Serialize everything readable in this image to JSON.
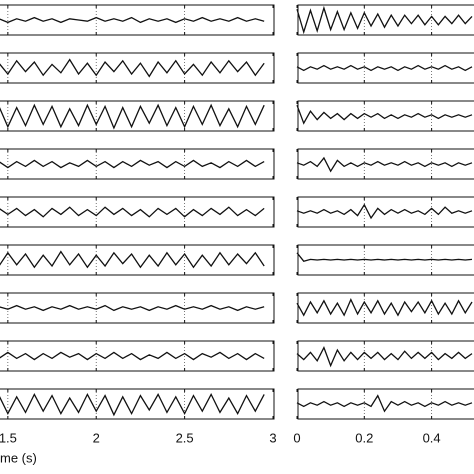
{
  "chart_data": [
    {
      "type": "line",
      "x_label": "me (s)",
      "xlim": [
        1.45,
        3
      ],
      "xticks": [
        1.5,
        2,
        2.5,
        3
      ],
      "ylim": [
        -1,
        1
      ],
      "grid": true,
      "color": "#111111",
      "x": [
        1.45,
        1.5,
        1.55,
        1.6,
        1.65,
        1.7,
        1.75,
        1.8,
        1.85,
        1.9,
        1.95,
        2,
        2.05,
        2.1,
        2.15,
        2.2,
        2.25,
        2.3,
        2.35,
        2.4,
        2.45,
        2.5,
        2.55,
        2.6,
        2.65,
        2.7,
        2.75,
        2.8,
        2.85,
        2.9,
        2.95
      ],
      "series": [
        {
          "values": [
            0.1,
            -0.2,
            0.1,
            -0.1,
            0.2,
            -0.1,
            0.1,
            -0.2,
            0.1,
            0,
            -0.1,
            0.2,
            -0.1,
            0.1,
            -0.1,
            0.2,
            -0.2,
            0.1,
            -0.1,
            0.1,
            -0.2,
            0.1,
            -0.1,
            0.2,
            -0.1,
            0.1,
            -0.1,
            0.2,
            -0.1,
            0.1,
            -0.1
          ]
        },
        {
          "values": [
            0.4,
            -0.5,
            0.6,
            -0.3,
            0.5,
            -0.6,
            0.3,
            -0.4,
            0.7,
            -0.5,
            0.4,
            -0.6,
            0.5,
            -0.3,
            0.6,
            -0.5,
            0.4,
            -0.7,
            0.5,
            -0.4,
            0.6,
            -0.5,
            0.3,
            -0.6,
            0.5,
            -0.4,
            0.6,
            -0.3,
            0.5,
            -0.6,
            0.4
          ]
        },
        {
          "values": [
            0.8,
            -0.9,
            0.7,
            -0.8,
            0.9,
            -0.7,
            0.8,
            -0.9,
            0.6,
            -0.8,
            0.9,
            -0.7,
            0.8,
            -1,
            0.7,
            -0.9,
            0.8,
            -0.6,
            0.9,
            -0.8,
            0.7,
            -0.9,
            0.8,
            -0.7,
            0.9,
            -0.8,
            0.6,
            -0.9,
            0.8,
            -0.7,
            0.9
          ]
        },
        {
          "values": [
            0.2,
            -0.3,
            0.2,
            -0.2,
            0.3,
            -0.2,
            0.2,
            -0.3,
            0.1,
            -0.2,
            0.3,
            -0.2,
            0.2,
            -0.3,
            0.2,
            -0.2,
            0.3,
            -0.1,
            0.2,
            -0.3,
            0.2,
            -0.2,
            0.3,
            -0.2,
            0.1,
            -0.3,
            0.2,
            -0.2,
            0.3,
            -0.2,
            0.2
          ]
        },
        {
          "values": [
            0.3,
            -0.2,
            0.3,
            -0.3,
            0.2,
            -0.4,
            0.3,
            -0.2,
            0.4,
            -0.3,
            0.2,
            -0.3,
            0.4,
            -0.2,
            0.3,
            -0.3,
            0.2,
            -0.4,
            0.3,
            -0.2,
            0.3,
            -0.4,
            0.2,
            -0.3,
            0.3,
            -0.2,
            0.4,
            -0.3,
            0.2,
            -0.3,
            0.3
          ]
        },
        {
          "values": [
            -0.5,
            0.6,
            -0.4,
            0.5,
            -0.6,
            0.4,
            -0.5,
            0.7,
            -0.4,
            0.5,
            -0.6,
            0.4,
            -0.5,
            0.6,
            -0.3,
            0.5,
            -0.6,
            0.4,
            -0.5,
            0.6,
            -0.4,
            0.5,
            -0.6,
            0.4,
            -0.5,
            0.6,
            -0.4,
            0.5,
            -0.3,
            0.6,
            -0.5
          ]
        },
        {
          "values": [
            0.1,
            -0.1,
            0.2,
            -0.1,
            0.1,
            -0.2,
            0.1,
            -0.1,
            0.2,
            -0.1,
            0.1,
            -0.1,
            0.2,
            -0.2,
            0.1,
            -0.1,
            0.1,
            -0.2,
            0.1,
            -0.1,
            0.2,
            -0.1,
            0.1,
            -0.1,
            0.2,
            -0.1,
            0.1,
            -0.2,
            0.1,
            -0.1,
            0.1
          ]
        },
        {
          "values": [
            -0.2,
            0.3,
            -0.2,
            0.2,
            -0.3,
            0.2,
            -0.2,
            0.3,
            -0.1,
            0.2,
            -0.3,
            0.2,
            -0.2,
            0.3,
            -0.2,
            0.2,
            -0.3,
            0.1,
            -0.2,
            0.3,
            -0.2,
            0.2,
            -0.3,
            0.2,
            -0.1,
            0.3,
            -0.2,
            0.2,
            -0.3,
            0.2,
            -0.2
          ]
        },
        {
          "values": [
            0.7,
            -0.8,
            0.6,
            -0.7,
            0.8,
            -0.6,
            0.7,
            -0.8,
            0.5,
            -0.7,
            0.8,
            -0.6,
            0.7,
            -0.9,
            0.6,
            -0.8,
            0.7,
            -0.5,
            0.8,
            -0.7,
            0.6,
            -0.8,
            0.7,
            -0.6,
            0.8,
            -0.7,
            0.5,
            -0.8,
            0.7,
            -0.6,
            0.8
          ]
        }
      ]
    },
    {
      "type": "line",
      "xlim": [
        0,
        0.52
      ],
      "xticks": [
        0,
        0.2,
        0.4
      ],
      "ylim": [
        -1,
        1
      ],
      "grid": true,
      "color": "#111111",
      "x": [
        0,
        0.02,
        0.04,
        0.06,
        0.08,
        0.1,
        0.12,
        0.14,
        0.16,
        0.18,
        0.2,
        0.22,
        0.24,
        0.26,
        0.28,
        0.3,
        0.32,
        0.34,
        0.36,
        0.38,
        0.4,
        0.42,
        0.44,
        0.46,
        0.48,
        0.5,
        0.52
      ],
      "series": [
        {
          "values": [
            0.9,
            -1,
            0.8,
            -0.9,
            1,
            -0.8,
            0.7,
            -0.8,
            0.6,
            -0.7,
            0.6,
            -0.5,
            0.5,
            -0.6,
            0.4,
            -0.5,
            0.4,
            -0.3,
            0.4,
            -0.4,
            0.3,
            -0.4,
            0.3,
            -0.3,
            0.4,
            -0.3,
            0.3
          ]
        },
        {
          "values": [
            0.1,
            -0.2,
            0.1,
            -0.1,
            0.2,
            -0.1,
            0.1,
            -0.1,
            0.2,
            -0.1,
            0.1,
            -0.2,
            0.1,
            -0.1,
            0.1,
            -0.2,
            0.1,
            -0.1,
            0.2,
            -0.1,
            0.1,
            -0.1,
            0.2,
            -0.1,
            0.1,
            -0.2,
            0.1
          ]
        },
        {
          "values": [
            0.9,
            -0.6,
            0.4,
            -0.3,
            0.3,
            -0.2,
            0.2,
            -0.3,
            0.2,
            -0.2,
            0.2,
            -0.1,
            0.2,
            -0.2,
            0.1,
            -0.2,
            0.1,
            -0.1,
            0.2,
            -0.1,
            0.1,
            -0.2,
            0.1,
            -0.1,
            0.1,
            -0.1,
            0.1
          ]
        },
        {
          "values": [
            0.1,
            -0.1,
            0.2,
            -0.2,
            0.5,
            -0.6,
            0.3,
            -0.2,
            0.1,
            -0.2,
            0.1,
            -0.1,
            0.2,
            -0.1,
            0.1,
            -0.1,
            0.2,
            -0.1,
            0.1,
            -0.2,
            0.1,
            -0.1,
            0.1,
            -0.2,
            0.1,
            -0.1,
            0.1
          ]
        },
        {
          "values": [
            0.1,
            -0.1,
            0.1,
            -0.1,
            0.2,
            -0.1,
            0.1,
            -0.2,
            0.2,
            -0.3,
            0.6,
            -0.5,
            0.3,
            -0.2,
            0.2,
            -0.1,
            0.2,
            -0.1,
            0.1,
            -0.2,
            0.3,
            -0.2,
            0.4,
            -0.1,
            0.1,
            -0.1,
            0.1
          ]
        },
        {
          "values": [
            0.6,
            -0.1,
            0.05,
            0,
            0.05,
            0,
            0.05,
            0,
            0.05,
            0,
            0.05,
            0,
            0.05,
            0,
            0.05,
            0,
            0.05,
            0,
            0.05,
            0,
            0.05,
            0,
            0.05,
            0,
            0.05,
            0,
            0.05
          ]
        },
        {
          "values": [
            0.4,
            -0.6,
            0.5,
            -0.4,
            0.6,
            -0.5,
            0.4,
            -0.6,
            0.7,
            -0.5,
            0.5,
            -0.4,
            0.6,
            -0.5,
            0.4,
            -0.6,
            0.5,
            -0.3,
            0.5,
            -0.4,
            0.6,
            -0.5,
            0.4,
            -0.5,
            0.6,
            -0.4,
            0.5
          ]
        },
        {
          "values": [
            0.2,
            -0.3,
            0.3,
            -0.4,
            0.7,
            -0.8,
            0.5,
            -0.4,
            0.3,
            -0.3,
            0.3,
            -0.2,
            0.3,
            -0.3,
            0.2,
            -0.3,
            0.4,
            -0.2,
            0.3,
            -0.2,
            0.3,
            -0.3,
            0.2,
            -0.2,
            0.3,
            -0.2,
            0.2
          ]
        },
        {
          "values": [
            0.1,
            -0.2,
            0.1,
            -0.1,
            0.2,
            -0.1,
            0.1,
            -0.2,
            0.1,
            -0.1,
            0.1,
            -0.2,
            0.7,
            -0.6,
            0.2,
            -0.1,
            0.2,
            -0.1,
            0.1,
            -0.2,
            0.1,
            -0.1,
            0.2,
            -0.1,
            0.1,
            -0.1,
            0.1
          ]
        }
      ]
    }
  ]
}
